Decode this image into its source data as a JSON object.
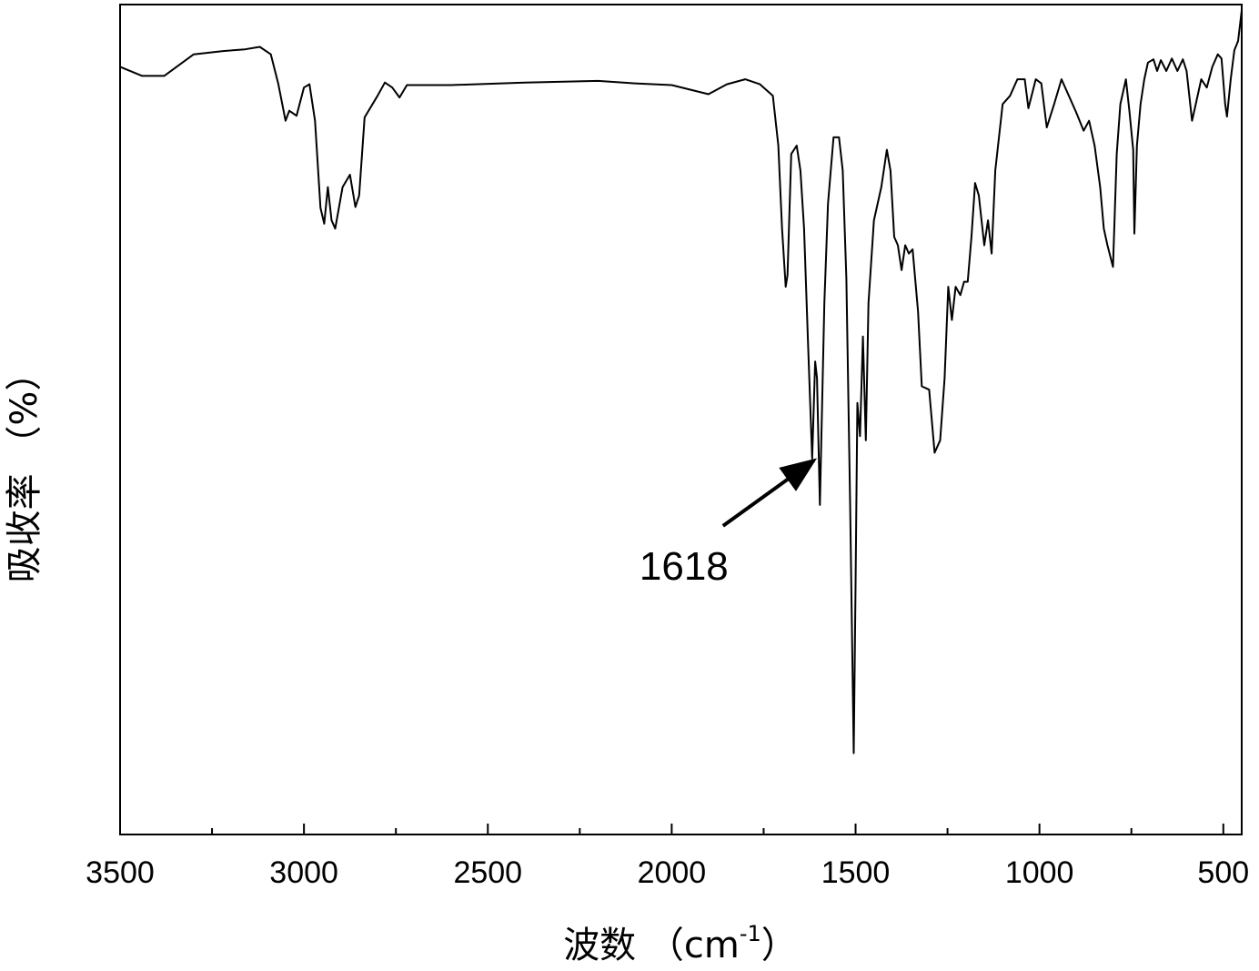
{
  "chart_data": {
    "type": "line",
    "xlabel": "波数 （cm",
    "xlabel_sup": "-1",
    "xlabel_close": "）",
    "ylabel": "吸收率 （%）",
    "xlim": [
      3500,
      450
    ],
    "ylim": [
      0,
      100
    ],
    "x_reversed": true,
    "grid": false,
    "yticks_shown": false,
    "xticks": [
      3500,
      3000,
      2500,
      2000,
      1500,
      1000,
      500
    ],
    "xtick_labels": [
      "3500",
      "3000",
      "2500",
      "2000",
      "1500",
      "1000",
      "500"
    ],
    "annotation": {
      "label": "1618",
      "x": 1618,
      "y": 45.3
    },
    "series": [
      {
        "values": [
          [
            3500,
            92.5
          ],
          [
            3440,
            91.4
          ],
          [
            3380,
            91.4
          ],
          [
            3300,
            94.0
          ],
          [
            3220,
            94.4
          ],
          [
            3160,
            94.6
          ],
          [
            3120,
            94.9
          ],
          [
            3090,
            94.0
          ],
          [
            3070,
            90.5
          ],
          [
            3050,
            86.0
          ],
          [
            3040,
            87.2
          ],
          [
            3020,
            86.6
          ],
          [
            3000,
            90.0
          ],
          [
            2985,
            90.4
          ],
          [
            2970,
            86.0
          ],
          [
            2955,
            75.5
          ],
          [
            2945,
            73.6
          ],
          [
            2935,
            78.0
          ],
          [
            2925,
            74.0
          ],
          [
            2915,
            73.0
          ],
          [
            2895,
            78.0
          ],
          [
            2875,
            79.5
          ],
          [
            2860,
            75.6
          ],
          [
            2850,
            77.0
          ],
          [
            2835,
            86.4
          ],
          [
            2800,
            89.0
          ],
          [
            2780,
            90.6
          ],
          [
            2760,
            90.0
          ],
          [
            2740,
            88.8
          ],
          [
            2720,
            90.3
          ],
          [
            2600,
            90.3
          ],
          [
            2400,
            90.6
          ],
          [
            2200,
            90.8
          ],
          [
            2100,
            90.5
          ],
          [
            2000,
            90.3
          ],
          [
            1900,
            89.2
          ],
          [
            1850,
            90.4
          ],
          [
            1800,
            91.0
          ],
          [
            1760,
            90.4
          ],
          [
            1725,
            89.0
          ],
          [
            1710,
            83.0
          ],
          [
            1700,
            73.0
          ],
          [
            1690,
            66.0
          ],
          [
            1685,
            67.4
          ],
          [
            1675,
            82.0
          ],
          [
            1660,
            83.0
          ],
          [
            1650,
            80.0
          ],
          [
            1640,
            73.0
          ],
          [
            1630,
            60.0
          ],
          [
            1618,
            45.3
          ],
          [
            1610,
            57.0
          ],
          [
            1605,
            55.0
          ],
          [
            1597,
            39.7
          ],
          [
            1585,
            64.0
          ],
          [
            1575,
            76.0
          ],
          [
            1560,
            84.0
          ],
          [
            1545,
            84.0
          ],
          [
            1535,
            80.0
          ],
          [
            1525,
            67.0
          ],
          [
            1515,
            40.0
          ],
          [
            1505,
            9.8
          ],
          [
            1500,
            30.0
          ],
          [
            1495,
            52.0
          ],
          [
            1488,
            48.0
          ],
          [
            1480,
            60.0
          ],
          [
            1472,
            47.5
          ],
          [
            1465,
            64.0
          ],
          [
            1450,
            74.0
          ],
          [
            1430,
            78.0
          ],
          [
            1415,
            82.5
          ],
          [
            1405,
            80.0
          ],
          [
            1395,
            72.0
          ],
          [
            1385,
            71.0
          ],
          [
            1375,
            68.0
          ],
          [
            1365,
            71.0
          ],
          [
            1355,
            70.0
          ],
          [
            1345,
            70.5
          ],
          [
            1330,
            63.0
          ],
          [
            1320,
            54.0
          ],
          [
            1300,
            53.6
          ],
          [
            1285,
            46.0
          ],
          [
            1270,
            47.5
          ],
          [
            1258,
            55.0
          ],
          [
            1248,
            66.0
          ],
          [
            1238,
            62.0
          ],
          [
            1228,
            66.0
          ],
          [
            1215,
            65.0
          ],
          [
            1205,
            66.6
          ],
          [
            1195,
            66.6
          ],
          [
            1185,
            72.0
          ],
          [
            1175,
            78.5
          ],
          [
            1165,
            77.0
          ],
          [
            1150,
            71.0
          ],
          [
            1140,
            74.0
          ],
          [
            1130,
            70.0
          ],
          [
            1120,
            80.0
          ],
          [
            1100,
            88.0
          ],
          [
            1080,
            89.0
          ],
          [
            1060,
            91.0
          ],
          [
            1040,
            91.0
          ],
          [
            1030,
            87.5
          ],
          [
            1010,
            91.0
          ],
          [
            995,
            90.5
          ],
          [
            980,
            85.2
          ],
          [
            960,
            88.0
          ],
          [
            940,
            91.0
          ],
          [
            920,
            89.0
          ],
          [
            900,
            87.0
          ],
          [
            880,
            84.8
          ],
          [
            865,
            86.0
          ],
          [
            850,
            83.0
          ],
          [
            835,
            78.0
          ],
          [
            825,
            73.0
          ],
          [
            815,
            71.0
          ],
          [
            800,
            68.4
          ],
          [
            790,
            82.0
          ],
          [
            780,
            88.0
          ],
          [
            765,
            91.0
          ],
          [
            755,
            87.0
          ],
          [
            745,
            82.5
          ],
          [
            742,
            72.4
          ],
          [
            735,
            83.0
          ],
          [
            725,
            88.0
          ],
          [
            715,
            91.0
          ],
          [
            705,
            93.0
          ],
          [
            690,
            93.4
          ],
          [
            680,
            92.0
          ],
          [
            670,
            93.3
          ],
          [
            655,
            92.0
          ],
          [
            640,
            93.5
          ],
          [
            625,
            92.0
          ],
          [
            610,
            93.4
          ],
          [
            600,
            92.0
          ],
          [
            585,
            86.0
          ],
          [
            575,
            88.0
          ],
          [
            560,
            91.0
          ],
          [
            545,
            90.0
          ],
          [
            530,
            92.5
          ],
          [
            515,
            94.0
          ],
          [
            505,
            93.5
          ],
          [
            495,
            88.0
          ],
          [
            490,
            86.5
          ],
          [
            480,
            91.0
          ],
          [
            470,
            94.5
          ],
          [
            460,
            95.6
          ],
          [
            450,
            99.3
          ]
        ]
      }
    ]
  }
}
